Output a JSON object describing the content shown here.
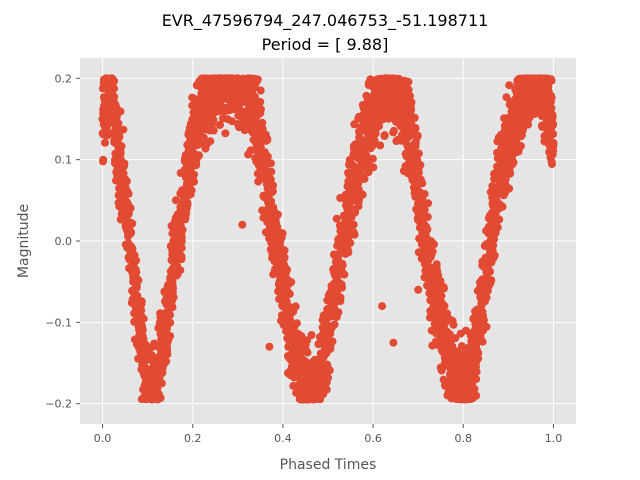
{
  "chart_data": {
    "type": "scatter",
    "title": "EVR_47596794_247.046753_-51.198711",
    "subtitle": "Period = [ 9.88]",
    "xlabel": "Phased Times",
    "ylabel": "Magnitude",
    "xlim": [
      -0.05,
      1.05
    ],
    "ylim": [
      -0.225,
      0.225
    ],
    "xticks": [
      0.0,
      0.2,
      0.4,
      0.6,
      0.8,
      1.0
    ],
    "xtick_labels": [
      "0.0",
      "0.2",
      "0.4",
      "0.6",
      "0.8",
      "1.0"
    ],
    "yticks": [
      -0.2,
      -0.1,
      0.0,
      0.1,
      0.2
    ],
    "ytick_labels": [
      "−0.2",
      "−0.1",
      "0.0",
      "0.1",
      "0.2"
    ],
    "grid": true,
    "background_color": "#E5E5E5",
    "marker_color": "#E24A33",
    "series": [
      {
        "points": [
          [
            0.0,
            0.15
          ],
          [
            0.01,
            0.19
          ],
          [
            0.02,
            0.2
          ],
          [
            0.03,
            0.12
          ],
          [
            0.05,
            0.05
          ],
          [
            0.07,
            -0.05
          ],
          [
            0.09,
            -0.14
          ],
          [
            0.1,
            -0.19
          ],
          [
            0.12,
            -0.18
          ],
          [
            0.14,
            -0.1
          ],
          [
            0.16,
            -0.02
          ],
          [
            0.18,
            0.05
          ],
          [
            0.2,
            0.12
          ],
          [
            0.22,
            0.17
          ],
          [
            0.25,
            0.2
          ],
          [
            0.28,
            0.2
          ],
          [
            0.3,
            0.2
          ],
          [
            0.33,
            0.18
          ],
          [
            0.35,
            0.12
          ],
          [
            0.37,
            0.05
          ],
          [
            0.4,
            -0.05
          ],
          [
            0.42,
            -0.12
          ],
          [
            0.45,
            -0.18
          ],
          [
            0.47,
            -0.19
          ],
          [
            0.5,
            -0.12
          ],
          [
            0.52,
            -0.04
          ],
          [
            0.55,
            0.05
          ],
          [
            0.58,
            0.12
          ],
          [
            0.61,
            0.18
          ],
          [
            0.63,
            0.2
          ],
          [
            0.65,
            0.19
          ],
          [
            0.68,
            0.14
          ],
          [
            0.7,
            0.07
          ],
          [
            0.72,
            -0.02
          ],
          [
            0.75,
            -0.1
          ],
          [
            0.78,
            -0.17
          ],
          [
            0.8,
            -0.19
          ],
          [
            0.82,
            -0.16
          ],
          [
            0.84,
            -0.08
          ],
          [
            0.86,
            0.0
          ],
          [
            0.88,
            0.08
          ],
          [
            0.91,
            0.14
          ],
          [
            0.94,
            0.19
          ],
          [
            0.97,
            0.2
          ],
          [
            0.99,
            0.16
          ],
          [
            1.0,
            0.12
          ],
          [
            0.37,
            -0.13
          ],
          [
            0.62,
            -0.08
          ],
          [
            0.645,
            -0.125
          ],
          [
            0.94,
            0.2
          ],
          [
            0.7,
            -0.06
          ],
          [
            0.31,
            0.02
          ],
          [
            0.93,
            0.13
          ]
        ]
      }
    ]
  }
}
